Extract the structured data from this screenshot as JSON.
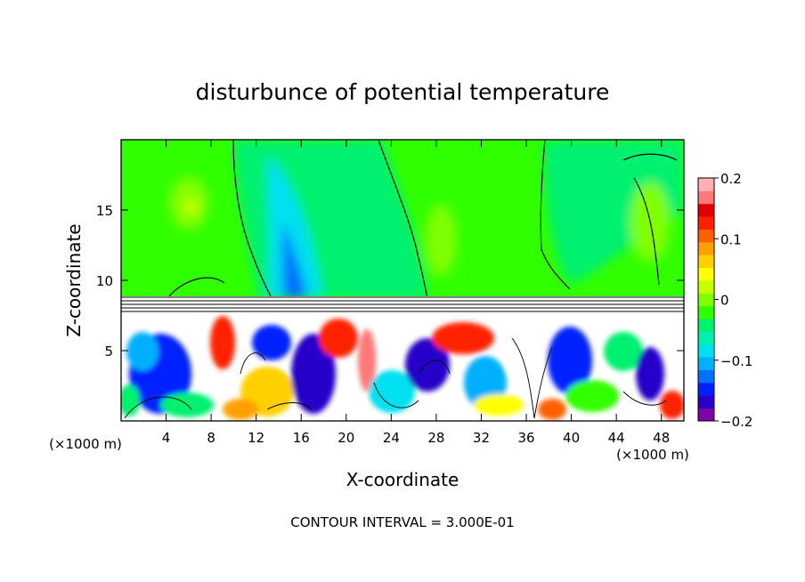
{
  "chart_data": {
    "type": "heatmap",
    "title": "disturbunce of potential temperature",
    "xlabel": "X-coordinate",
    "ylabel": "Z-coordinate",
    "x_unit_label": "(×1000 m)",
    "xlim": [
      0,
      50
    ],
    "ylim": [
      0,
      20
    ],
    "x_ticks": [
      4,
      8,
      12,
      16,
      20,
      24,
      28,
      32,
      36,
      40,
      44,
      48
    ],
    "y_ticks": [
      5,
      10,
      15
    ],
    "colorbar": {
      "range": [
        -0.2,
        0.2
      ],
      "tick_values": [
        0.2,
        0.1,
        0,
        -0.1,
        -0.2
      ],
      "tick_labels": [
        "0.2",
        "0.1",
        "0",
        "−0.1",
        "−0.2"
      ],
      "colors": [
        "#7f00a8",
        "#2800c8",
        "#0020ff",
        "#0070ff",
        "#00b0ff",
        "#00e0f0",
        "#00f0b0",
        "#00f070",
        "#30ff00",
        "#80ff00",
        "#c8ff00",
        "#ffff00",
        "#ffd000",
        "#ffa000",
        "#ff6000",
        "#ff2000",
        "#e00000",
        "#ff7878",
        "#ffb0b0"
      ]
    },
    "grid": false,
    "footnote": "CONTOUR INTERVAL = 3.000E-01",
    "contour_interval": 0.3
  }
}
